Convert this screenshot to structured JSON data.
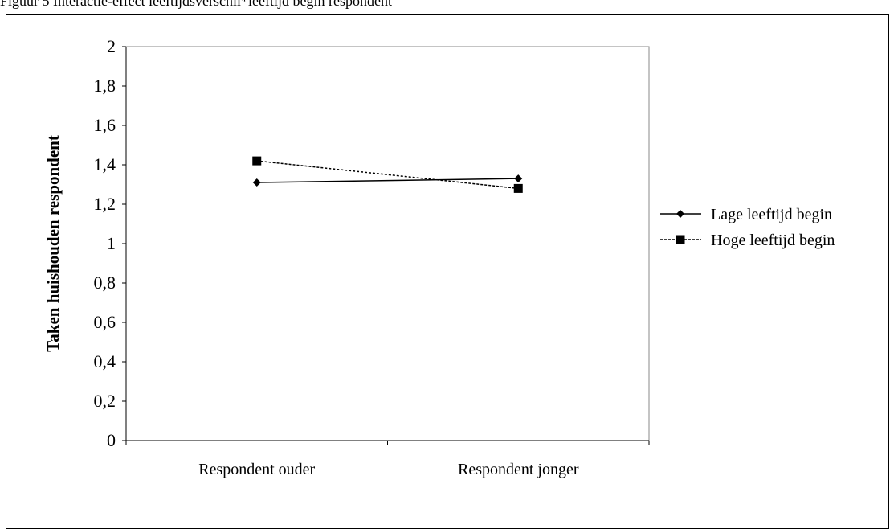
{
  "caption": "Figuur 5 Interactie-effect leeftijdsverschil*leeftijd begin respondent",
  "chart_data": {
    "type": "line",
    "categories": [
      "Respondent ouder",
      "Respondent jonger"
    ],
    "series": [
      {
        "name": "Lage leeftijd begin",
        "values": [
          1.31,
          1.33
        ],
        "color": "#000000",
        "marker": "diamond",
        "dash": "solid"
      },
      {
        "name": "Hoge leeftijd begin",
        "values": [
          1.42,
          1.28
        ],
        "color": "#000000",
        "marker": "square",
        "dash": "dotted"
      }
    ],
    "ylabel": "Taken huishouden respondent",
    "xlabel": "",
    "ylim": [
      0,
      2
    ],
    "yticks": [
      "0",
      "0,2",
      "0,4",
      "0,6",
      "0,8",
      "1",
      "1,2",
      "1,4",
      "1,6",
      "1,8",
      "2"
    ],
    "grid": false,
    "legend": "right"
  }
}
